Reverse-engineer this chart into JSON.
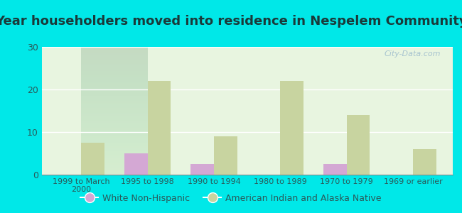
{
  "title": "Year householders moved into residence in Nespelem Community",
  "categories": [
    "1999 to March\n2000",
    "1995 to 1998",
    "1990 to 1994",
    "1980 to 1989",
    "1970 to 1979",
    "1969 or earlier"
  ],
  "white_non_hispanic": [
    0,
    5,
    2.5,
    0,
    2.5,
    0
  ],
  "american_indian": [
    7.5,
    22,
    9,
    22,
    14,
    6
  ],
  "white_color": "#d4a8d4",
  "indian_color": "#c8d4a0",
  "background_outer": "#00e8e8",
  "background_inner_top": "#e8f5e0",
  "background_inner_bottom": "#f5fdf0",
  "ylim": [
    0,
    30
  ],
  "yticks": [
    0,
    10,
    20,
    30
  ],
  "bar_width": 0.35,
  "legend_white": "White Non-Hispanic",
  "legend_indian": "American Indian and Alaska Native",
  "watermark": "City-Data.com",
  "title_color": "#1a3a3a",
  "tick_color": "#2a5a5a",
  "title_fontsize": 13
}
